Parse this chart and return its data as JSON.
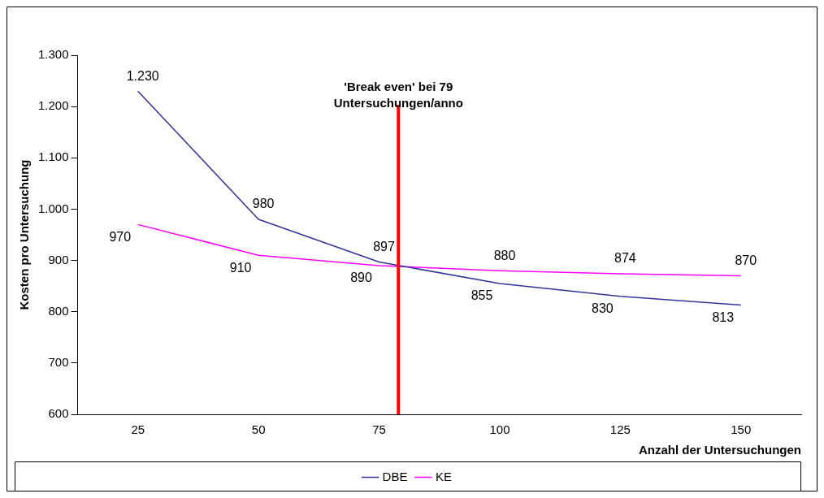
{
  "chart_data": {
    "type": "line",
    "xlabel": "Anzahl der Untersuchungen",
    "ylabel": "Kosten pro Untersuchung",
    "x": [
      25,
      50,
      75,
      100,
      125,
      150
    ],
    "series": [
      {
        "name": "DBE",
        "color": "#333399",
        "values": [
          1230,
          980,
          897,
          855,
          830,
          813
        ],
        "value_labels": [
          "1.230",
          "980",
          "897",
          "855",
          "830",
          "813"
        ]
      },
      {
        "name": "KE",
        "color": "#ff00ff",
        "values": [
          970,
          910,
          890,
          880,
          874,
          870
        ],
        "value_labels": [
          "970",
          "910",
          "890",
          "880",
          "874",
          "870"
        ]
      }
    ],
    "xlim": [
      12.5,
      162.5
    ],
    "xticks": [
      25,
      50,
      75,
      100,
      125,
      150
    ],
    "ylim": [
      600,
      1300
    ],
    "yticks": [
      600,
      700,
      800,
      900,
      {
        "value": 1000,
        "label": "1.000"
      },
      {
        "value": 1100,
        "label": "1.100"
      },
      {
        "value": 1200,
        "label": "1.200"
      },
      {
        "value": 1300,
        "label": "1.300"
      }
    ],
    "ref_lines": [
      {
        "axis": "x",
        "value": 79,
        "label": "'Break even' bei 79\nUntersuchungen/anno",
        "color": "#ff0000"
      }
    ],
    "grid": false,
    "legend": "bottom",
    "marker": "none",
    "line_style": "solid"
  }
}
